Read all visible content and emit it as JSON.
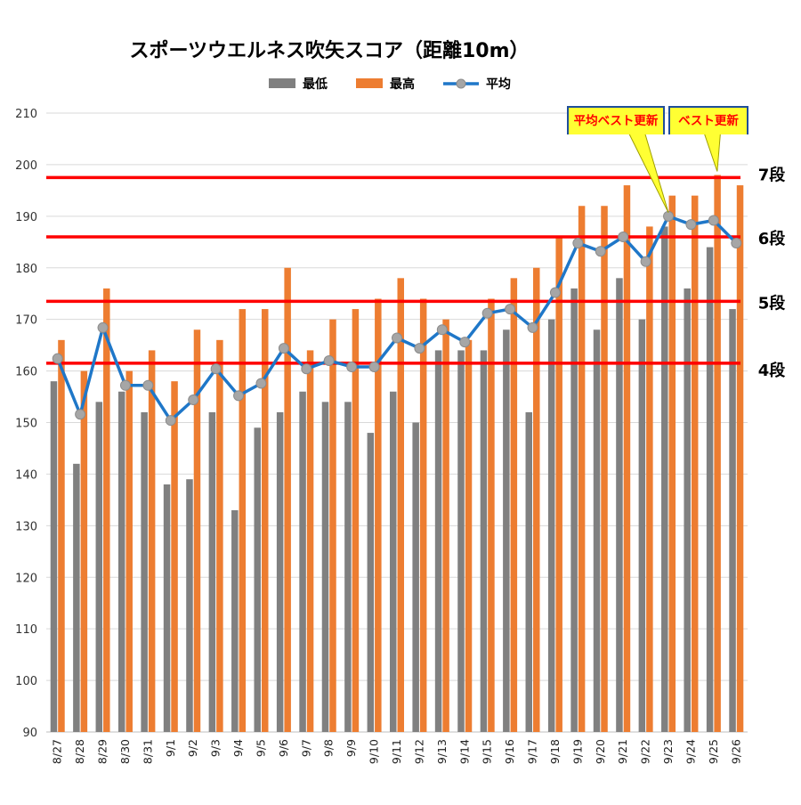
{
  "chart_data": {
    "type": "bar",
    "title": "スポーツウエルネス吹矢スコア（距離10m）",
    "categories": [
      "8/27",
      "8/28",
      "8/29",
      "8/30",
      "8/31",
      "9/1",
      "9/2",
      "9/3",
      "9/4",
      "9/5",
      "9/6",
      "9/7",
      "9/8",
      "9/9",
      "9/10",
      "9/11",
      "9/12",
      "9/13",
      "9/14",
      "9/15",
      "9/16",
      "9/17",
      "9/18",
      "9/19",
      "9/20",
      "9/21",
      "9/22",
      "9/23",
      "9/24",
      "9/25",
      "9/26"
    ],
    "series": [
      {
        "name": "最低",
        "kind": "bar",
        "color": "#808080",
        "values": [
          158,
          142,
          154,
          156,
          152,
          138,
          139,
          152,
          133,
          149,
          152,
          156,
          154,
          154,
          148,
          156,
          150,
          164,
          164,
          164,
          168,
          152,
          170,
          176,
          168,
          178,
          170,
          188,
          176,
          184,
          172
        ]
      },
      {
        "name": "最高",
        "kind": "bar",
        "color": "#ed7d31",
        "values": [
          166,
          160,
          176,
          160,
          164,
          158,
          168,
          166,
          172,
          172,
          180,
          164,
          170,
          172,
          174,
          178,
          174,
          170,
          166,
          174,
          178,
          180,
          186,
          192,
          192,
          196,
          188,
          194,
          194,
          198,
          196
        ]
      },
      {
        "name": "平均",
        "kind": "line",
        "color": "#1f77c8",
        "marker_color": "#a6a6a6",
        "values": [
          162.4,
          151.6,
          168.4,
          157.2,
          157.2,
          150.4,
          154.4,
          160.4,
          155.2,
          157.6,
          164.4,
          160.4,
          162.0,
          160.8,
          160.8,
          166.4,
          164.4,
          168.0,
          165.6,
          171.2,
          172.0,
          168.4,
          175.2,
          184.8,
          183.2,
          186.0,
          181.2,
          190.0,
          188.4,
          189.2,
          184.8
        ]
      }
    ],
    "ylim": [
      90,
      210
    ],
    "yticks": [
      90,
      100,
      110,
      120,
      130,
      140,
      150,
      160,
      170,
      180,
      190,
      200,
      210
    ],
    "grid": true,
    "legend_position": "top",
    "reference_lines": [
      {
        "value": 197.5,
        "label": "7段",
        "color": "#ff0000"
      },
      {
        "value": 186,
        "label": "6段",
        "color": "#ff0000"
      },
      {
        "value": 173.5,
        "label": "5段",
        "color": "#ff0000"
      },
      {
        "value": 161.5,
        "label": "4段",
        "color": "#ff0000"
      }
    ],
    "callouts": [
      {
        "text": "平均ベスト更新",
        "target_category": "9/23",
        "target_series": "平均"
      },
      {
        "text": "ベスト更新",
        "target_category": "9/25",
        "target_series": "最高"
      }
    ]
  }
}
